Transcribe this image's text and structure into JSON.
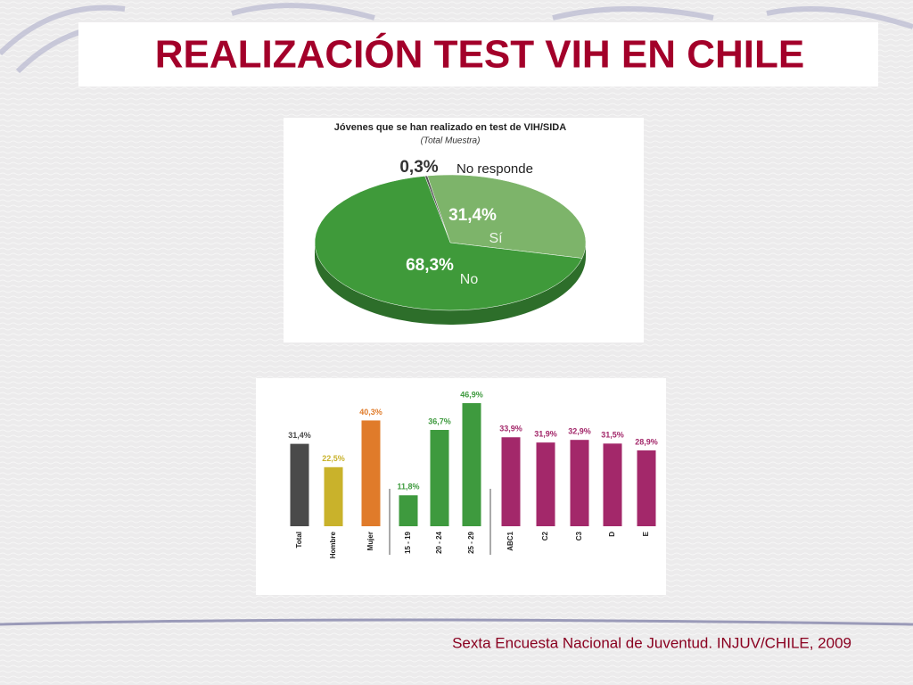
{
  "title": "REALIZACIÓN TEST VIH EN CHILE",
  "source": "Sexta Encuesta Nacional de Juventud. INJUV/CHILE, 2009",
  "chart_data": [
    {
      "type": "pie",
      "title": "Jóvenes que se han realizado en test de VIH/SIDA",
      "subtitle": "(Total Muestra)",
      "categories": [
        "No responde",
        "Sí",
        "No"
      ],
      "values": [
        0.3,
        31.4,
        68.3
      ],
      "value_labels": [
        "0,3%",
        "31,4%",
        "68,3%"
      ],
      "colors": [
        "#555555",
        "#7db46a",
        "#3f9a3a"
      ]
    },
    {
      "type": "bar",
      "categories": [
        "Total",
        "Hombre",
        "Mujer",
        "15 - 19",
        "20 - 24",
        "25 - 29",
        "ABC1",
        "C2",
        "C3",
        "D",
        "E"
      ],
      "values": [
        31.4,
        22.5,
        40.3,
        11.8,
        36.7,
        46.9,
        33.9,
        31.9,
        32.9,
        31.5,
        28.9
      ],
      "value_labels": [
        "31,4%",
        "22,5%",
        "40,3%",
        "11,8%",
        "36,7%",
        "46,9%",
        "33,9%",
        "31,9%",
        "32,9%",
        "31,5%",
        "28,9%"
      ],
      "colors": [
        "#4a4a4a",
        "#c9b22b",
        "#e07b2a",
        "#3e9a3e",
        "#3e9a3e",
        "#3e9a3e",
        "#a3286a",
        "#a3286a",
        "#a3286a",
        "#a3286a",
        "#a3286a"
      ]
    }
  ]
}
